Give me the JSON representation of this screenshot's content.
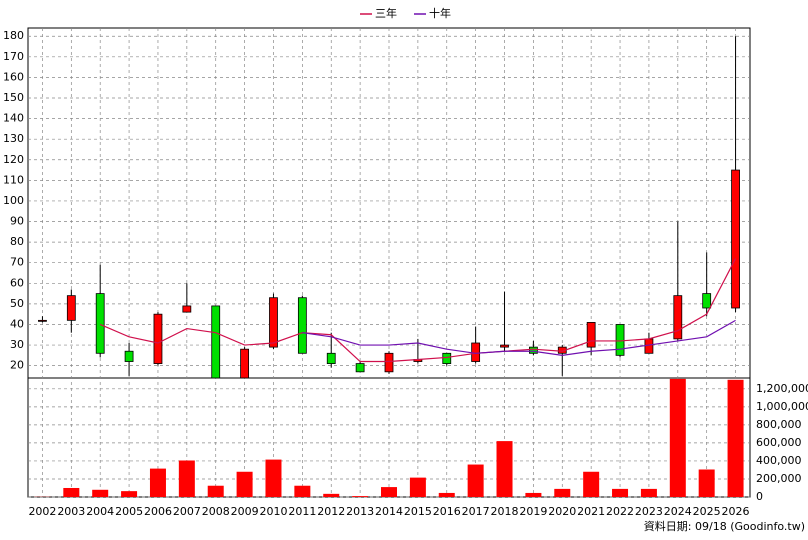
{
  "chart_data": [
    {
      "type": "candlestick",
      "categories": [
        "2002",
        "2003",
        "2004",
        "2005",
        "2006",
        "2007",
        "2008",
        "2009",
        "2010",
        "2011",
        "2012",
        "2013",
        "2014",
        "2015",
        "2016",
        "2017",
        "2018",
        "2019",
        "2020",
        "2021",
        "2022",
        "2023",
        "2024",
        "2025",
        "2026"
      ],
      "open": [
        42,
        42,
        55,
        27,
        21,
        46,
        49,
        14,
        29,
        53,
        26,
        21,
        17,
        22,
        26,
        22,
        29,
        29,
        26,
        29,
        40,
        26,
        33,
        55,
        48
      ],
      "high": [
        44,
        57,
        69,
        31,
        46,
        60,
        49,
        29,
        55,
        54,
        36,
        22,
        27,
        33,
        26,
        39,
        56,
        32,
        30,
        41,
        40,
        36,
        90,
        75,
        180
      ],
      "low": [
        41,
        36,
        24,
        15,
        20,
        46,
        14,
        14,
        28,
        26,
        19,
        17,
        16,
        21,
        20,
        21,
        27,
        25,
        15,
        25,
        24,
        26,
        32,
        44,
        46
      ],
      "close": [
        42,
        54,
        26,
        22,
        45,
        49,
        14,
        28,
        53,
        26,
        21,
        17,
        26,
        23,
        21,
        31,
        30,
        26,
        29,
        41,
        25,
        33,
        54,
        48,
        115
      ],
      "up_color": "#ff0000",
      "down_color": "#00e000",
      "series": [
        {
          "name": "三年",
          "color": "#d0104c",
          "values": [
            null,
            null,
            40,
            34,
            31,
            38,
            36,
            30,
            31,
            36,
            35,
            22,
            22,
            23,
            24,
            26,
            27,
            28,
            27,
            32,
            32,
            33,
            37,
            45,
            72
          ]
        },
        {
          "name": "十年",
          "color": "#7010b0",
          "values": [
            null,
            null,
            null,
            null,
            null,
            null,
            null,
            null,
            null,
            36,
            34,
            30,
            30,
            31,
            28,
            26,
            27,
            27,
            25,
            27,
            28,
            30,
            32,
            34,
            42
          ]
        }
      ],
      "ylim": [
        14,
        184
      ],
      "yticks": [
        20,
        30,
        40,
        50,
        60,
        70,
        80,
        90,
        100,
        110,
        120,
        130,
        140,
        150,
        160,
        170,
        180
      ],
      "grid": true,
      "legend": "top"
    },
    {
      "type": "bar",
      "values": [
        2000,
        100000,
        80000,
        65000,
        315000,
        405000,
        125000,
        280000,
        415000,
        125000,
        35000,
        10000,
        110000,
        215000,
        45000,
        360000,
        620000,
        45000,
        90000,
        280000,
        90000,
        90000,
        1310000,
        305000,
        1300000
      ],
      "color": "#ff0000",
      "ylim": [
        0,
        1320000
      ],
      "yticks": [
        0,
        {
          "value": 200000,
          "label": "200,000"
        },
        {
          "value": 400000,
          "label": "400,000"
        },
        {
          "value": 600000,
          "label": "600,000"
        },
        {
          "value": 800000,
          "label": "800,000"
        },
        {
          "value": 1000000,
          "label": "1,000,000"
        },
        {
          "value": 1200000,
          "label": "1,200,000"
        }
      ],
      "grid": true
    }
  ],
  "footer": "資料日期: 09/18 (Goodinfo.tw)"
}
